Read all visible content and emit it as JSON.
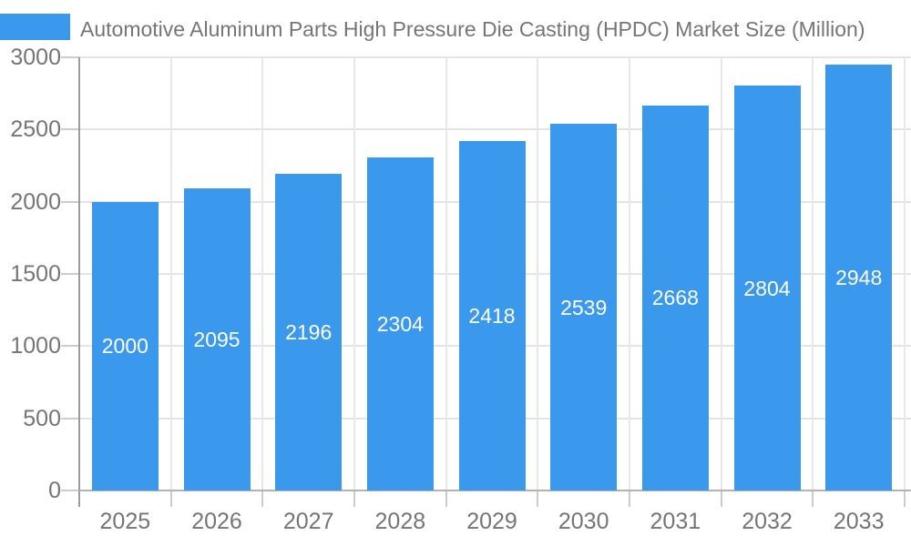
{
  "title": "Automotive Aluminum Parts High Pressure Die Casting (HPDC) Market Size (Million)",
  "colors": {
    "bar": "#3a99ec",
    "title_text": "#757575",
    "axis_text": "#757575",
    "value_label": "#ffffff",
    "gridline_h": "#e4e4e4",
    "gridline_v": "#e8e8e8",
    "baseline": "#b2b2b2",
    "axis_line": "#9b9b9b",
    "tick": "#cccccc",
    "background": "#ffffff"
  },
  "chart_data": {
    "type": "bar",
    "title": "Automotive Aluminum Parts High Pressure Die Casting (HPDC) Market Size (Million)",
    "categories": [
      "2025",
      "2026",
      "2027",
      "2028",
      "2029",
      "2030",
      "2031",
      "2032",
      "2033"
    ],
    "values": [
      2000,
      2095,
      2196,
      2304,
      2418,
      2539,
      2668,
      2804,
      2948
    ],
    "series": [
      {
        "name": "Automotive Aluminum Parts High Pressure Die Casting (HPDC) Market Size (Million)",
        "values": [
          2000,
          2095,
          2196,
          2304,
          2418,
          2539,
          2668,
          2804,
          2948
        ]
      }
    ],
    "xlabel": "",
    "ylabel": "",
    "ylim": [
      0,
      3000
    ],
    "ytick_interval": 500,
    "ytick_labels": [
      "0",
      "500",
      "1000",
      "1500",
      "2000",
      "2500",
      "3000"
    ],
    "grid": true,
    "legend_position": "top-left",
    "value_label_style": "white, centered inside bar"
  }
}
